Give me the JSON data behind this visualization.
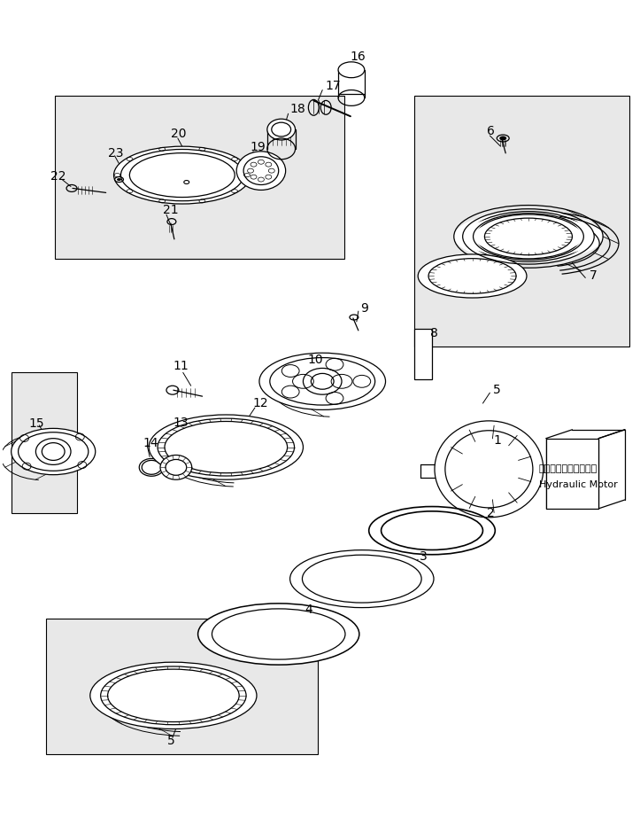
{
  "bg_color": "#ffffff",
  "line_color": "#000000",
  "fig_width": 7.23,
  "fig_height": 9.23,
  "annotation_japanese": "ハイドロリックモータ",
  "annotation_english": "Hydraulic Motor"
}
